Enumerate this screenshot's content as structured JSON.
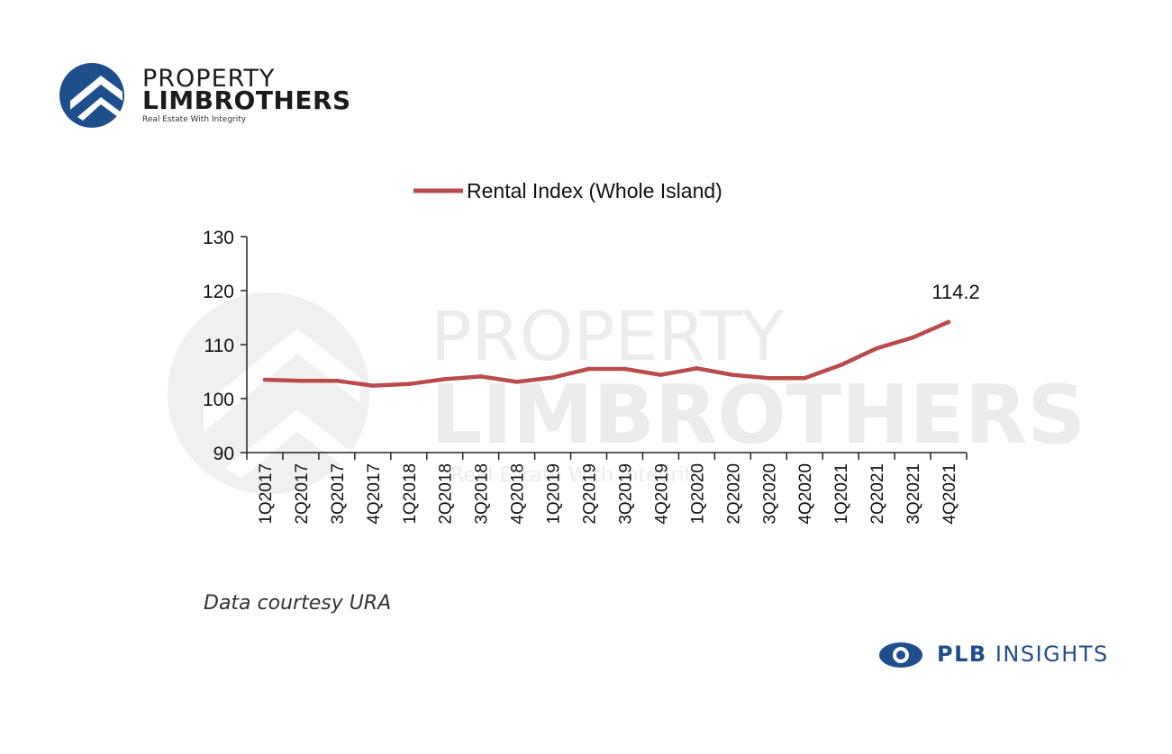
{
  "brand": {
    "line1": "PROPERTY",
    "line2": "LIMBROTHERS",
    "tagline": "Real Estate With Integrity",
    "color": "#1f4e8c"
  },
  "watermark": {
    "line1": "PROPERTY",
    "line2": "LIMBROTHERS",
    "tagline": "Real Estate With Integrity"
  },
  "chart_data": {
    "type": "line",
    "categories": [
      "1Q2017",
      "2Q2017",
      "3Q2017",
      "4Q2017",
      "1Q2018",
      "2Q2018",
      "3Q2018",
      "4Q2018",
      "1Q2019",
      "2Q2019",
      "3Q2019",
      "4Q2019",
      "1Q2020",
      "2Q2020",
      "3Q2020",
      "4Q2020",
      "1Q2021",
      "2Q2021",
      "3Q2021",
      "4Q2021"
    ],
    "series": [
      {
        "name": "Rental Index (Whole Island)",
        "color": "#b94c4b",
        "values": [
          103.5,
          103.3,
          103.3,
          102.4,
          102.7,
          103.6,
          104.1,
          103.1,
          103.9,
          105.5,
          105.5,
          104.4,
          105.6,
          104.4,
          103.8,
          103.8,
          106.2,
          109.3,
          111.3,
          114.2
        ]
      }
    ],
    "ylim": [
      90,
      130
    ],
    "yticks": [
      90,
      100,
      110,
      120,
      130
    ],
    "annotation": {
      "category": "4Q2021",
      "text": "114.2"
    },
    "legend": "top-center",
    "grid": false,
    "title": "",
    "xlabel": "",
    "ylabel": ""
  },
  "caption": "Data courtesy URA",
  "footer": {
    "bold": "PLB",
    "text": "INSIGHTS",
    "icon": "eye-icon",
    "color": "#1f4e8c"
  }
}
